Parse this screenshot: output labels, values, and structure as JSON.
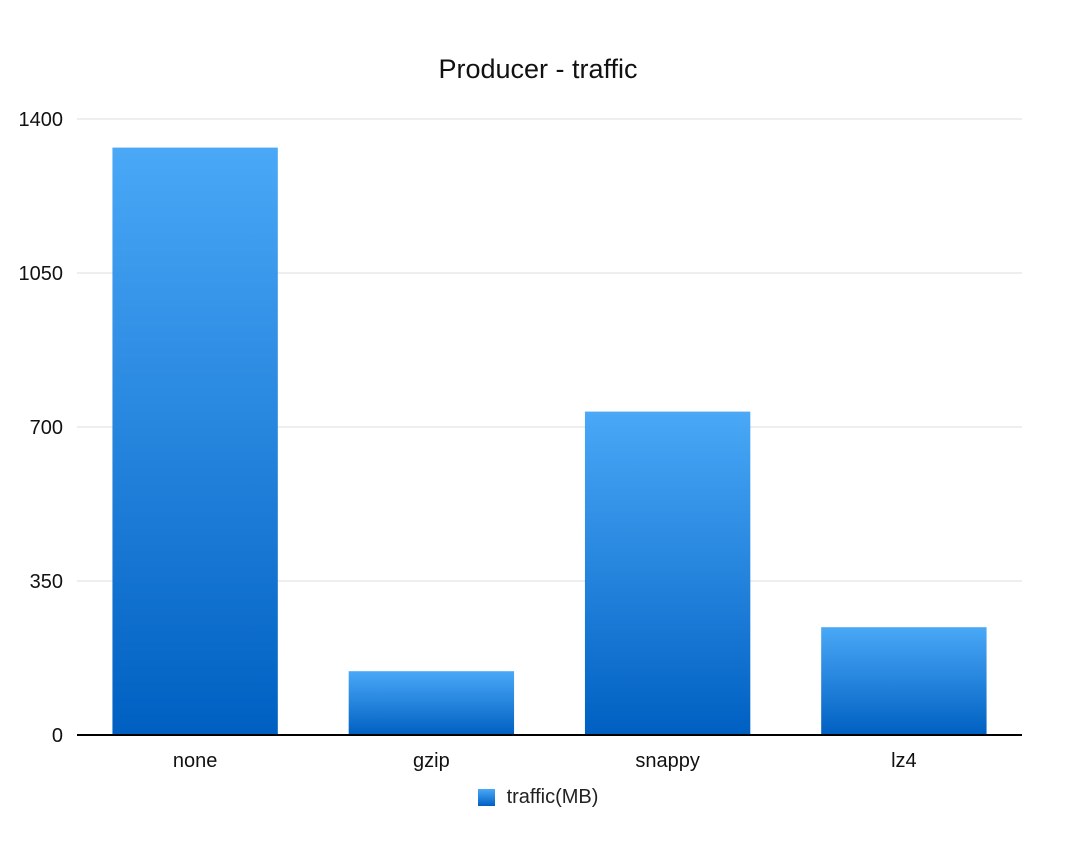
{
  "chart_data": {
    "type": "bar",
    "title": "Producer - traffic",
    "categories": [
      "none",
      "gzip",
      "snappy",
      "lz4"
    ],
    "series": [
      {
        "name": "traffic(MB)",
        "values": [
          1335,
          145,
          735,
          245
        ]
      }
    ],
    "ylim": [
      0,
      1400
    ],
    "yticks": [
      0,
      350,
      700,
      1050,
      1400
    ],
    "grid": true,
    "legend": "bottom",
    "colors": {
      "bar_top": "#4aa8f7",
      "bar_bottom": "#0060c2",
      "grid": "#dcdcdc",
      "axis": "#000000"
    }
  }
}
